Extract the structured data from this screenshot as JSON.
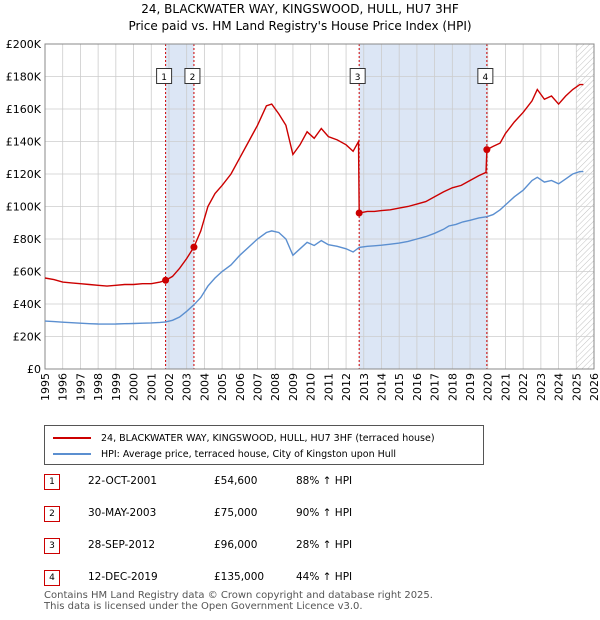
{
  "chart_data": {
    "type": "line",
    "title": "24, BLACKWATER WAY, KINGSWOOD, HULL, HU7 3HF",
    "subtitle": "Price paid vs. HM Land Registry's House Price Index (HPI)",
    "xlim": [
      1995,
      2026
    ],
    "ylim": [
      0,
      200000
    ],
    "x_ticks": [
      1995,
      1996,
      1997,
      1998,
      1999,
      2000,
      2001,
      2002,
      2003,
      2004,
      2005,
      2006,
      2007,
      2008,
      2009,
      2010,
      2011,
      2012,
      2013,
      2014,
      2015,
      2016,
      2017,
      2018,
      2019,
      2020,
      2021,
      2022,
      2023,
      2024,
      2025,
      2026
    ],
    "y_ticks": [
      {
        "value": 0,
        "label": "£0"
      },
      {
        "value": 20000,
        "label": "£20K"
      },
      {
        "value": 40000,
        "label": "£40K"
      },
      {
        "value": 60000,
        "label": "£60K"
      },
      {
        "value": 80000,
        "label": "£80K"
      },
      {
        "value": 100000,
        "label": "£100K"
      },
      {
        "value": 120000,
        "label": "£120K"
      },
      {
        "value": 140000,
        "label": "£140K"
      },
      {
        "value": 160000,
        "label": "£160K"
      },
      {
        "value": 180000,
        "label": "£180K"
      },
      {
        "value": 200000,
        "label": "£200K"
      }
    ],
    "grid": true,
    "colors": {
      "property": "#cc0000",
      "hpi": "#5b8fd0",
      "shade": "#dce6f5",
      "forecast_hatch": "#999999"
    },
    "shaded_ranges": [
      [
        2001.81,
        2003.41
      ],
      [
        2012.74,
        2019.95
      ]
    ],
    "forecast_from": 2025.0,
    "series": [
      {
        "name": "24, BLACKWATER WAY, KINGSWOOD, HULL, HU7 3HF (terraced house)",
        "key": "property",
        "points": [
          [
            1995.0,
            56000
          ],
          [
            1995.5,
            55000
          ],
          [
            1996.0,
            53500
          ],
          [
            1996.5,
            53000
          ],
          [
            1997.0,
            52500
          ],
          [
            1997.5,
            52000
          ],
          [
            1998.0,
            51500
          ],
          [
            1998.5,
            51000
          ],
          [
            1999.0,
            51500
          ],
          [
            1999.5,
            52000
          ],
          [
            2000.0,
            52000
          ],
          [
            2000.5,
            52500
          ],
          [
            2001.0,
            52500
          ],
          [
            2001.5,
            53500
          ],
          [
            2001.81,
            54600
          ],
          [
            2002.2,
            57000
          ],
          [
            2002.6,
            62000
          ],
          [
            2003.0,
            68000
          ],
          [
            2003.41,
            75000
          ],
          [
            2003.8,
            85000
          ],
          [
            2004.2,
            100000
          ],
          [
            2004.6,
            108000
          ],
          [
            2005.0,
            113000
          ],
          [
            2005.5,
            120000
          ],
          [
            2006.0,
            130000
          ],
          [
            2006.5,
            140000
          ],
          [
            2007.0,
            150000
          ],
          [
            2007.5,
            162000
          ],
          [
            2007.8,
            163000
          ],
          [
            2008.2,
            157000
          ],
          [
            2008.6,
            150000
          ],
          [
            2009.0,
            132000
          ],
          [
            2009.4,
            138000
          ],
          [
            2009.8,
            146000
          ],
          [
            2010.2,
            142000
          ],
          [
            2010.6,
            148000
          ],
          [
            2011.0,
            143000
          ],
          [
            2011.5,
            141000
          ],
          [
            2012.0,
            138000
          ],
          [
            2012.4,
            134000
          ],
          [
            2012.7,
            140000
          ],
          [
            2012.74,
            96000
          ],
          [
            2013.2,
            97000
          ],
          [
            2013.6,
            97000
          ],
          [
            2014.0,
            97500
          ],
          [
            2014.5,
            98000
          ],
          [
            2015.0,
            99000
          ],
          [
            2015.5,
            100000
          ],
          [
            2016.0,
            101500
          ],
          [
            2016.5,
            103000
          ],
          [
            2017.0,
            106000
          ],
          [
            2017.5,
            109000
          ],
          [
            2018.0,
            111500
          ],
          [
            2018.5,
            113000
          ],
          [
            2019.0,
            116000
          ],
          [
            2019.5,
            119000
          ],
          [
            2019.9,
            121000
          ],
          [
            2019.95,
            135000
          ],
          [
            2020.3,
            137000
          ],
          [
            2020.7,
            139000
          ],
          [
            2021.0,
            145000
          ],
          [
            2021.5,
            152000
          ],
          [
            2022.0,
            158000
          ],
          [
            2022.5,
            165000
          ],
          [
            2022.8,
            172000
          ],
          [
            2023.2,
            166000
          ],
          [
            2023.6,
            168000
          ],
          [
            2024.0,
            163000
          ],
          [
            2024.4,
            168000
          ],
          [
            2024.8,
            172000
          ],
          [
            2025.2,
            175000
          ],
          [
            2025.4,
            175000
          ]
        ]
      },
      {
        "name": "HPI: Average price, terraced house, City of Kingston upon Hull",
        "key": "hpi",
        "points": [
          [
            1995.0,
            29500
          ],
          [
            1995.5,
            29200
          ],
          [
            1996.0,
            28800
          ],
          [
            1996.5,
            28500
          ],
          [
            1997.0,
            28200
          ],
          [
            1997.5,
            27900
          ],
          [
            1998.0,
            27700
          ],
          [
            1998.5,
            27600
          ],
          [
            1999.0,
            27700
          ],
          [
            1999.5,
            27900
          ],
          [
            2000.0,
            28000
          ],
          [
            2000.5,
            28200
          ],
          [
            2001.0,
            28400
          ],
          [
            2001.5,
            28700
          ],
          [
            2001.81,
            29000
          ],
          [
            2002.2,
            30000
          ],
          [
            2002.6,
            32000
          ],
          [
            2003.0,
            35500
          ],
          [
            2003.41,
            39500
          ],
          [
            2003.8,
            44000
          ],
          [
            2004.2,
            51000
          ],
          [
            2004.6,
            56000
          ],
          [
            2005.0,
            60000
          ],
          [
            2005.5,
            64000
          ],
          [
            2006.0,
            70000
          ],
          [
            2006.5,
            75000
          ],
          [
            2007.0,
            80000
          ],
          [
            2007.5,
            84000
          ],
          [
            2007.8,
            85000
          ],
          [
            2008.2,
            84000
          ],
          [
            2008.6,
            80000
          ],
          [
            2009.0,
            70000
          ],
          [
            2009.4,
            74000
          ],
          [
            2009.8,
            78000
          ],
          [
            2010.2,
            76000
          ],
          [
            2010.6,
            79000
          ],
          [
            2011.0,
            76500
          ],
          [
            2011.5,
            75500
          ],
          [
            2012.0,
            74000
          ],
          [
            2012.4,
            72000
          ],
          [
            2012.74,
            74800
          ],
          [
            2013.2,
            75500
          ],
          [
            2013.6,
            75800
          ],
          [
            2014.0,
            76200
          ],
          [
            2014.5,
            76800
          ],
          [
            2015.0,
            77500
          ],
          [
            2015.5,
            78500
          ],
          [
            2016.0,
            80000
          ],
          [
            2016.5,
            81500
          ],
          [
            2017.0,
            83500
          ],
          [
            2017.5,
            86000
          ],
          [
            2017.8,
            88000
          ],
          [
            2018.2,
            89000
          ],
          [
            2018.6,
            90500
          ],
          [
            2019.0,
            91500
          ],
          [
            2019.5,
            93000
          ],
          [
            2019.95,
            93700
          ],
          [
            2020.3,
            95000
          ],
          [
            2020.7,
            98000
          ],
          [
            2021.0,
            101000
          ],
          [
            2021.5,
            106000
          ],
          [
            2022.0,
            110000
          ],
          [
            2022.5,
            116000
          ],
          [
            2022.8,
            118000
          ],
          [
            2023.2,
            115000
          ],
          [
            2023.6,
            116000
          ],
          [
            2024.0,
            114000
          ],
          [
            2024.4,
            117000
          ],
          [
            2024.8,
            120000
          ],
          [
            2025.2,
            121500
          ],
          [
            2025.4,
            121500
          ]
        ]
      }
    ],
    "sale_markers": [
      {
        "label": "1",
        "x": 2001.81,
        "y": 54600
      },
      {
        "label": "2",
        "x": 2003.41,
        "y": 75000
      },
      {
        "label": "3",
        "x": 2012.74,
        "y": 96000
      },
      {
        "label": "4",
        "x": 2019.95,
        "y": 135000
      }
    ],
    "marker_label_value": 180000
  },
  "legend": {
    "property_label": "24, BLACKWATER WAY, KINGSWOOD, HULL, HU7 3HF (terraced house)",
    "hpi_label": "HPI: Average price, terraced house, City of Kingston upon Hull"
  },
  "sales": [
    {
      "num": "1",
      "date": "22-OCT-2001",
      "price": "£54,600",
      "hpi": "88% ↑ HPI"
    },
    {
      "num": "2",
      "date": "30-MAY-2003",
      "price": "£75,000",
      "hpi": "90% ↑ HPI"
    },
    {
      "num": "3",
      "date": "28-SEP-2012",
      "price": "£96,000",
      "hpi": "28% ↑ HPI"
    },
    {
      "num": "4",
      "date": "12-DEC-2019",
      "price": "£135,000",
      "hpi": "44% ↑ HPI"
    }
  ],
  "footer": {
    "line1": "Contains HM Land Registry data © Crown copyright and database right 2025.",
    "line2": "This data is licensed under the Open Government Licence v3.0."
  }
}
